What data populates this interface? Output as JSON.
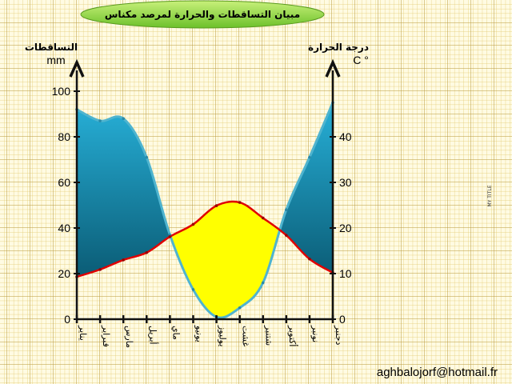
{
  "chart_data": {
    "type": "area",
    "title": "مبيان التساقطات والحرارة لمرصد مكناس",
    "categories": [
      "يناير",
      "فبراير",
      "مارس",
      "أبريل",
      "ماي",
      "يونيو",
      "يوليوز",
      "غشت",
      "شتنبر",
      "أكتوبر",
      "نونبر",
      "دجنبر"
    ],
    "series": [
      {
        "name": "التساقطات",
        "unit": "mm",
        "axis": "left",
        "values": [
          92,
          87,
          88,
          71,
          37,
          13,
          1,
          5,
          16,
          48,
          71,
          95
        ],
        "color": "#1a8fb3"
      },
      {
        "name": "درجة الحرارة",
        "unit": "C °",
        "axis": "right",
        "values": [
          9.3,
          10.9,
          13,
          14.6,
          18.1,
          20.8,
          24.9,
          25.6,
          22.2,
          18.4,
          13.2,
          10.2
        ],
        "color": "#e00000"
      }
    ],
    "left_axis": {
      "label": "التساقطات",
      "unit": "mm",
      "ylim": [
        0,
        100
      ],
      "ticks": [
        "0",
        "20",
        "40",
        "60",
        "80",
        "100"
      ]
    },
    "right_axis": {
      "label": "درجة الحرارة",
      "unit": "C °",
      "ylim": [
        0,
        50
      ],
      "ticks": [
        "0",
        "10",
        "20",
        "30",
        "40"
      ]
    },
    "dry_period_color": "#ffff00",
    "grid": true
  },
  "side_text": "MY TITLE",
  "footer_email": "aghbalojorf@hotmail.fr"
}
